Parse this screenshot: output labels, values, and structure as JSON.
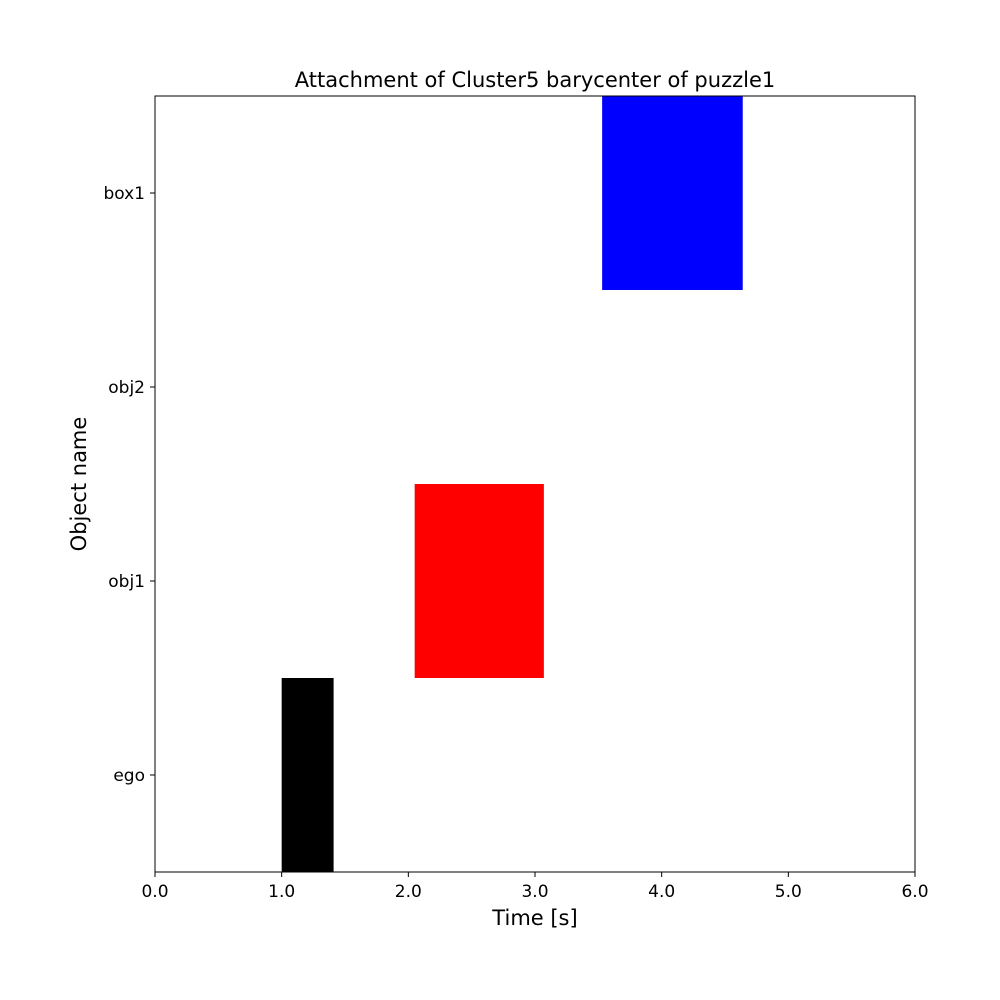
{
  "chart_data": {
    "type": "bar",
    "orientation": "horizontal-intervals",
    "title": "Attachment of Cluster5 barycenter of puzzle1",
    "xlabel": "Time [s]",
    "ylabel": "Object name",
    "xlim": [
      0.0,
      6.0
    ],
    "xticks": [
      "0.0",
      "1.0",
      "2.0",
      "3.0",
      "4.0",
      "5.0",
      "6.0"
    ],
    "categories": [
      "ego",
      "obj1",
      "obj2",
      "box1"
    ],
    "grid": false,
    "legend": "none",
    "intervals": [
      {
        "category": "ego",
        "start": 1.0,
        "end": 1.41,
        "color": "#000000"
      },
      {
        "category": "obj1",
        "start": 2.05,
        "end": 3.07,
        "color": "#ff0000"
      },
      {
        "category": "box1",
        "start": 3.53,
        "end": 4.64,
        "color": "#0000ff"
      }
    ]
  }
}
